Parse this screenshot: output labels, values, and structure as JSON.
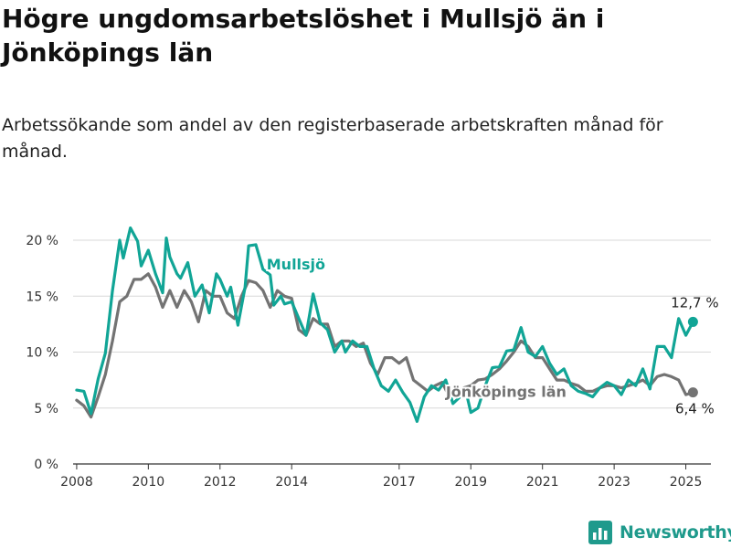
{
  "title": "Högre ungdomsarbetslöshet i Mullsjö än i Jönköpings län",
  "subtitle": "Arbetssökande som andel av den registerbaserade arbetskraften månad för månad.",
  "brand": {
    "name": "Newsworthy",
    "icon": "newsworthy-logo-icon"
  },
  "colors": {
    "mullsjo": "#11a596",
    "lan": "#737373",
    "grid": "#d8d8d8",
    "axis": "#333333"
  },
  "chart_data": {
    "type": "line",
    "title": "Högre ungdomsarbetslöshet i Mullsjö än i Jönköpings län",
    "xlabel": "",
    "ylabel": "",
    "xlim": [
      2007.9,
      2025.7
    ],
    "ylim": [
      0,
      20
    ],
    "grid": "horizontal",
    "legend": "inline",
    "y_ticks": [
      {
        "value": 0,
        "label": "0 %"
      },
      {
        "value": 5,
        "label": "5 %"
      },
      {
        "value": 10,
        "label": "10 %"
      },
      {
        "value": 15,
        "label": "15 %"
      },
      {
        "value": 20,
        "label": "20 %"
      }
    ],
    "x_ticks": [
      {
        "value": 2008,
        "label": "2008"
      },
      {
        "value": 2010,
        "label": "2010"
      },
      {
        "value": 2012,
        "label": "2012"
      },
      {
        "value": 2014,
        "label": "2014"
      },
      {
        "value": 2017,
        "label": "2017"
      },
      {
        "value": 2019,
        "label": "2019"
      },
      {
        "value": 2021,
        "label": "2021"
      },
      {
        "value": 2023,
        "label": "2023"
      },
      {
        "value": 2025,
        "label": "2025"
      }
    ],
    "series": [
      {
        "name": "Mullsjö",
        "color": "#11a596",
        "label_value": 2013.3,
        "end_label": "12,7 %",
        "points": [
          [
            2008.0,
            6.6
          ],
          [
            2008.2,
            6.5
          ],
          [
            2008.4,
            4.5
          ],
          [
            2008.6,
            7.6
          ],
          [
            2008.8,
            9.9
          ],
          [
            2009.0,
            15.5
          ],
          [
            2009.2,
            20.0
          ],
          [
            2009.3,
            18.4
          ],
          [
            2009.5,
            21.1
          ],
          [
            2009.7,
            19.9
          ],
          [
            2009.8,
            17.7
          ],
          [
            2010.0,
            19.1
          ],
          [
            2010.2,
            17.0
          ],
          [
            2010.4,
            15.3
          ],
          [
            2010.5,
            20.2
          ],
          [
            2010.6,
            18.5
          ],
          [
            2010.8,
            17.0
          ],
          [
            2010.9,
            16.6
          ],
          [
            2011.1,
            18.0
          ],
          [
            2011.3,
            15.0
          ],
          [
            2011.5,
            16.0
          ],
          [
            2011.7,
            13.5
          ],
          [
            2011.9,
            17.0
          ],
          [
            2012.0,
            16.5
          ],
          [
            2012.2,
            15.0
          ],
          [
            2012.3,
            15.8
          ],
          [
            2012.5,
            12.4
          ],
          [
            2012.7,
            15.8
          ],
          [
            2012.8,
            19.5
          ],
          [
            2013.0,
            19.6
          ],
          [
            2013.2,
            17.4
          ],
          [
            2013.4,
            16.9
          ],
          [
            2013.5,
            14.2
          ],
          [
            2013.7,
            15.0
          ],
          [
            2013.8,
            14.3
          ],
          [
            2014.0,
            14.5
          ],
          [
            2014.2,
            13.0
          ],
          [
            2014.4,
            11.5
          ],
          [
            2014.6,
            15.2
          ],
          [
            2014.8,
            12.6
          ],
          [
            2015.0,
            12.0
          ],
          [
            2015.2,
            10.0
          ],
          [
            2015.4,
            11.0
          ],
          [
            2015.5,
            10.0
          ],
          [
            2015.7,
            11.0
          ],
          [
            2015.9,
            10.5
          ],
          [
            2016.1,
            10.5
          ],
          [
            2016.3,
            8.5
          ],
          [
            2016.5,
            7.0
          ],
          [
            2016.7,
            6.5
          ],
          [
            2016.9,
            7.5
          ],
          [
            2017.1,
            6.4
          ],
          [
            2017.3,
            5.5
          ],
          [
            2017.5,
            3.8
          ],
          [
            2017.7,
            6.0
          ],
          [
            2017.9,
            7.0
          ],
          [
            2018.1,
            6.6
          ],
          [
            2018.3,
            7.5
          ],
          [
            2018.5,
            5.4
          ],
          [
            2018.7,
            6.0
          ],
          [
            2018.9,
            6.0
          ],
          [
            2019.0,
            4.6
          ],
          [
            2019.2,
            5.0
          ],
          [
            2019.4,
            7.0
          ],
          [
            2019.6,
            8.6
          ],
          [
            2019.8,
            8.7
          ],
          [
            2020.0,
            10.1
          ],
          [
            2020.2,
            10.2
          ],
          [
            2020.4,
            12.2
          ],
          [
            2020.6,
            10.0
          ],
          [
            2020.8,
            9.6
          ],
          [
            2021.0,
            10.5
          ],
          [
            2021.2,
            9.0
          ],
          [
            2021.4,
            8.0
          ],
          [
            2021.6,
            8.5
          ],
          [
            2021.8,
            7.0
          ],
          [
            2022.0,
            6.5
          ],
          [
            2022.2,
            6.3
          ],
          [
            2022.4,
            6.0
          ],
          [
            2022.6,
            6.8
          ],
          [
            2022.8,
            7.3
          ],
          [
            2023.0,
            7.0
          ],
          [
            2023.2,
            6.2
          ],
          [
            2023.4,
            7.5
          ],
          [
            2023.6,
            7.0
          ],
          [
            2023.8,
            8.5
          ],
          [
            2024.0,
            6.7
          ],
          [
            2024.2,
            10.5
          ],
          [
            2024.4,
            10.5
          ],
          [
            2024.6,
            9.5
          ],
          [
            2024.8,
            13.0
          ],
          [
            2025.0,
            11.5
          ],
          [
            2025.2,
            12.7
          ]
        ]
      },
      {
        "name": "Jönköpings län",
        "color": "#737373",
        "label_value": 2018.3,
        "end_label": "6,4 %",
        "points": [
          [
            2008.0,
            5.7
          ],
          [
            2008.2,
            5.2
          ],
          [
            2008.4,
            4.2
          ],
          [
            2008.6,
            6.0
          ],
          [
            2008.8,
            8.0
          ],
          [
            2009.0,
            11.0
          ],
          [
            2009.2,
            14.5
          ],
          [
            2009.4,
            15.0
          ],
          [
            2009.6,
            16.5
          ],
          [
            2009.8,
            16.5
          ],
          [
            2010.0,
            17.0
          ],
          [
            2010.2,
            15.8
          ],
          [
            2010.4,
            14.0
          ],
          [
            2010.6,
            15.5
          ],
          [
            2010.8,
            14.0
          ],
          [
            2011.0,
            15.5
          ],
          [
            2011.2,
            14.5
          ],
          [
            2011.4,
            12.7
          ],
          [
            2011.6,
            15.5
          ],
          [
            2011.8,
            15.0
          ],
          [
            2012.0,
            15.0
          ],
          [
            2012.2,
            13.5
          ],
          [
            2012.4,
            13.0
          ],
          [
            2012.6,
            15.0
          ],
          [
            2012.8,
            16.4
          ],
          [
            2013.0,
            16.2
          ],
          [
            2013.2,
            15.5
          ],
          [
            2013.4,
            14.0
          ],
          [
            2013.6,
            15.5
          ],
          [
            2013.8,
            15.0
          ],
          [
            2014.0,
            14.8
          ],
          [
            2014.2,
            12.0
          ],
          [
            2014.4,
            11.5
          ],
          [
            2014.6,
            13.0
          ],
          [
            2014.8,
            12.5
          ],
          [
            2015.0,
            12.5
          ],
          [
            2015.2,
            10.5
          ],
          [
            2015.4,
            11.0
          ],
          [
            2015.6,
            11.0
          ],
          [
            2015.8,
            10.5
          ],
          [
            2016.0,
            10.8
          ],
          [
            2016.2,
            9.0
          ],
          [
            2016.4,
            8.0
          ],
          [
            2016.6,
            9.5
          ],
          [
            2016.8,
            9.5
          ],
          [
            2017.0,
            9.0
          ],
          [
            2017.2,
            9.5
          ],
          [
            2017.4,
            7.5
          ],
          [
            2017.6,
            7.0
          ],
          [
            2017.8,
            6.5
          ],
          [
            2018.0,
            7.0
          ],
          [
            2018.2,
            7.3
          ],
          [
            2018.4,
            6.0
          ],
          [
            2018.6,
            6.3
          ],
          [
            2018.8,
            6.8
          ],
          [
            2019.0,
            7.0
          ],
          [
            2019.2,
            7.5
          ],
          [
            2019.4,
            7.6
          ],
          [
            2019.6,
            8.0
          ],
          [
            2019.8,
            8.5
          ],
          [
            2020.0,
            9.2
          ],
          [
            2020.2,
            10.0
          ],
          [
            2020.4,
            11.0
          ],
          [
            2020.6,
            10.5
          ],
          [
            2020.8,
            9.5
          ],
          [
            2021.0,
            9.5
          ],
          [
            2021.2,
            8.5
          ],
          [
            2021.4,
            7.5
          ],
          [
            2021.6,
            7.5
          ],
          [
            2021.8,
            7.2
          ],
          [
            2022.0,
            7.0
          ],
          [
            2022.2,
            6.5
          ],
          [
            2022.4,
            6.5
          ],
          [
            2022.6,
            6.8
          ],
          [
            2022.8,
            7.0
          ],
          [
            2023.0,
            7.0
          ],
          [
            2023.2,
            6.8
          ],
          [
            2023.4,
            7.0
          ],
          [
            2023.6,
            7.2
          ],
          [
            2023.8,
            7.5
          ],
          [
            2024.0,
            7.0
          ],
          [
            2024.2,
            7.8
          ],
          [
            2024.4,
            8.0
          ],
          [
            2024.6,
            7.8
          ],
          [
            2024.8,
            7.5
          ],
          [
            2025.0,
            6.2
          ],
          [
            2025.2,
            6.4
          ]
        ]
      }
    ]
  }
}
